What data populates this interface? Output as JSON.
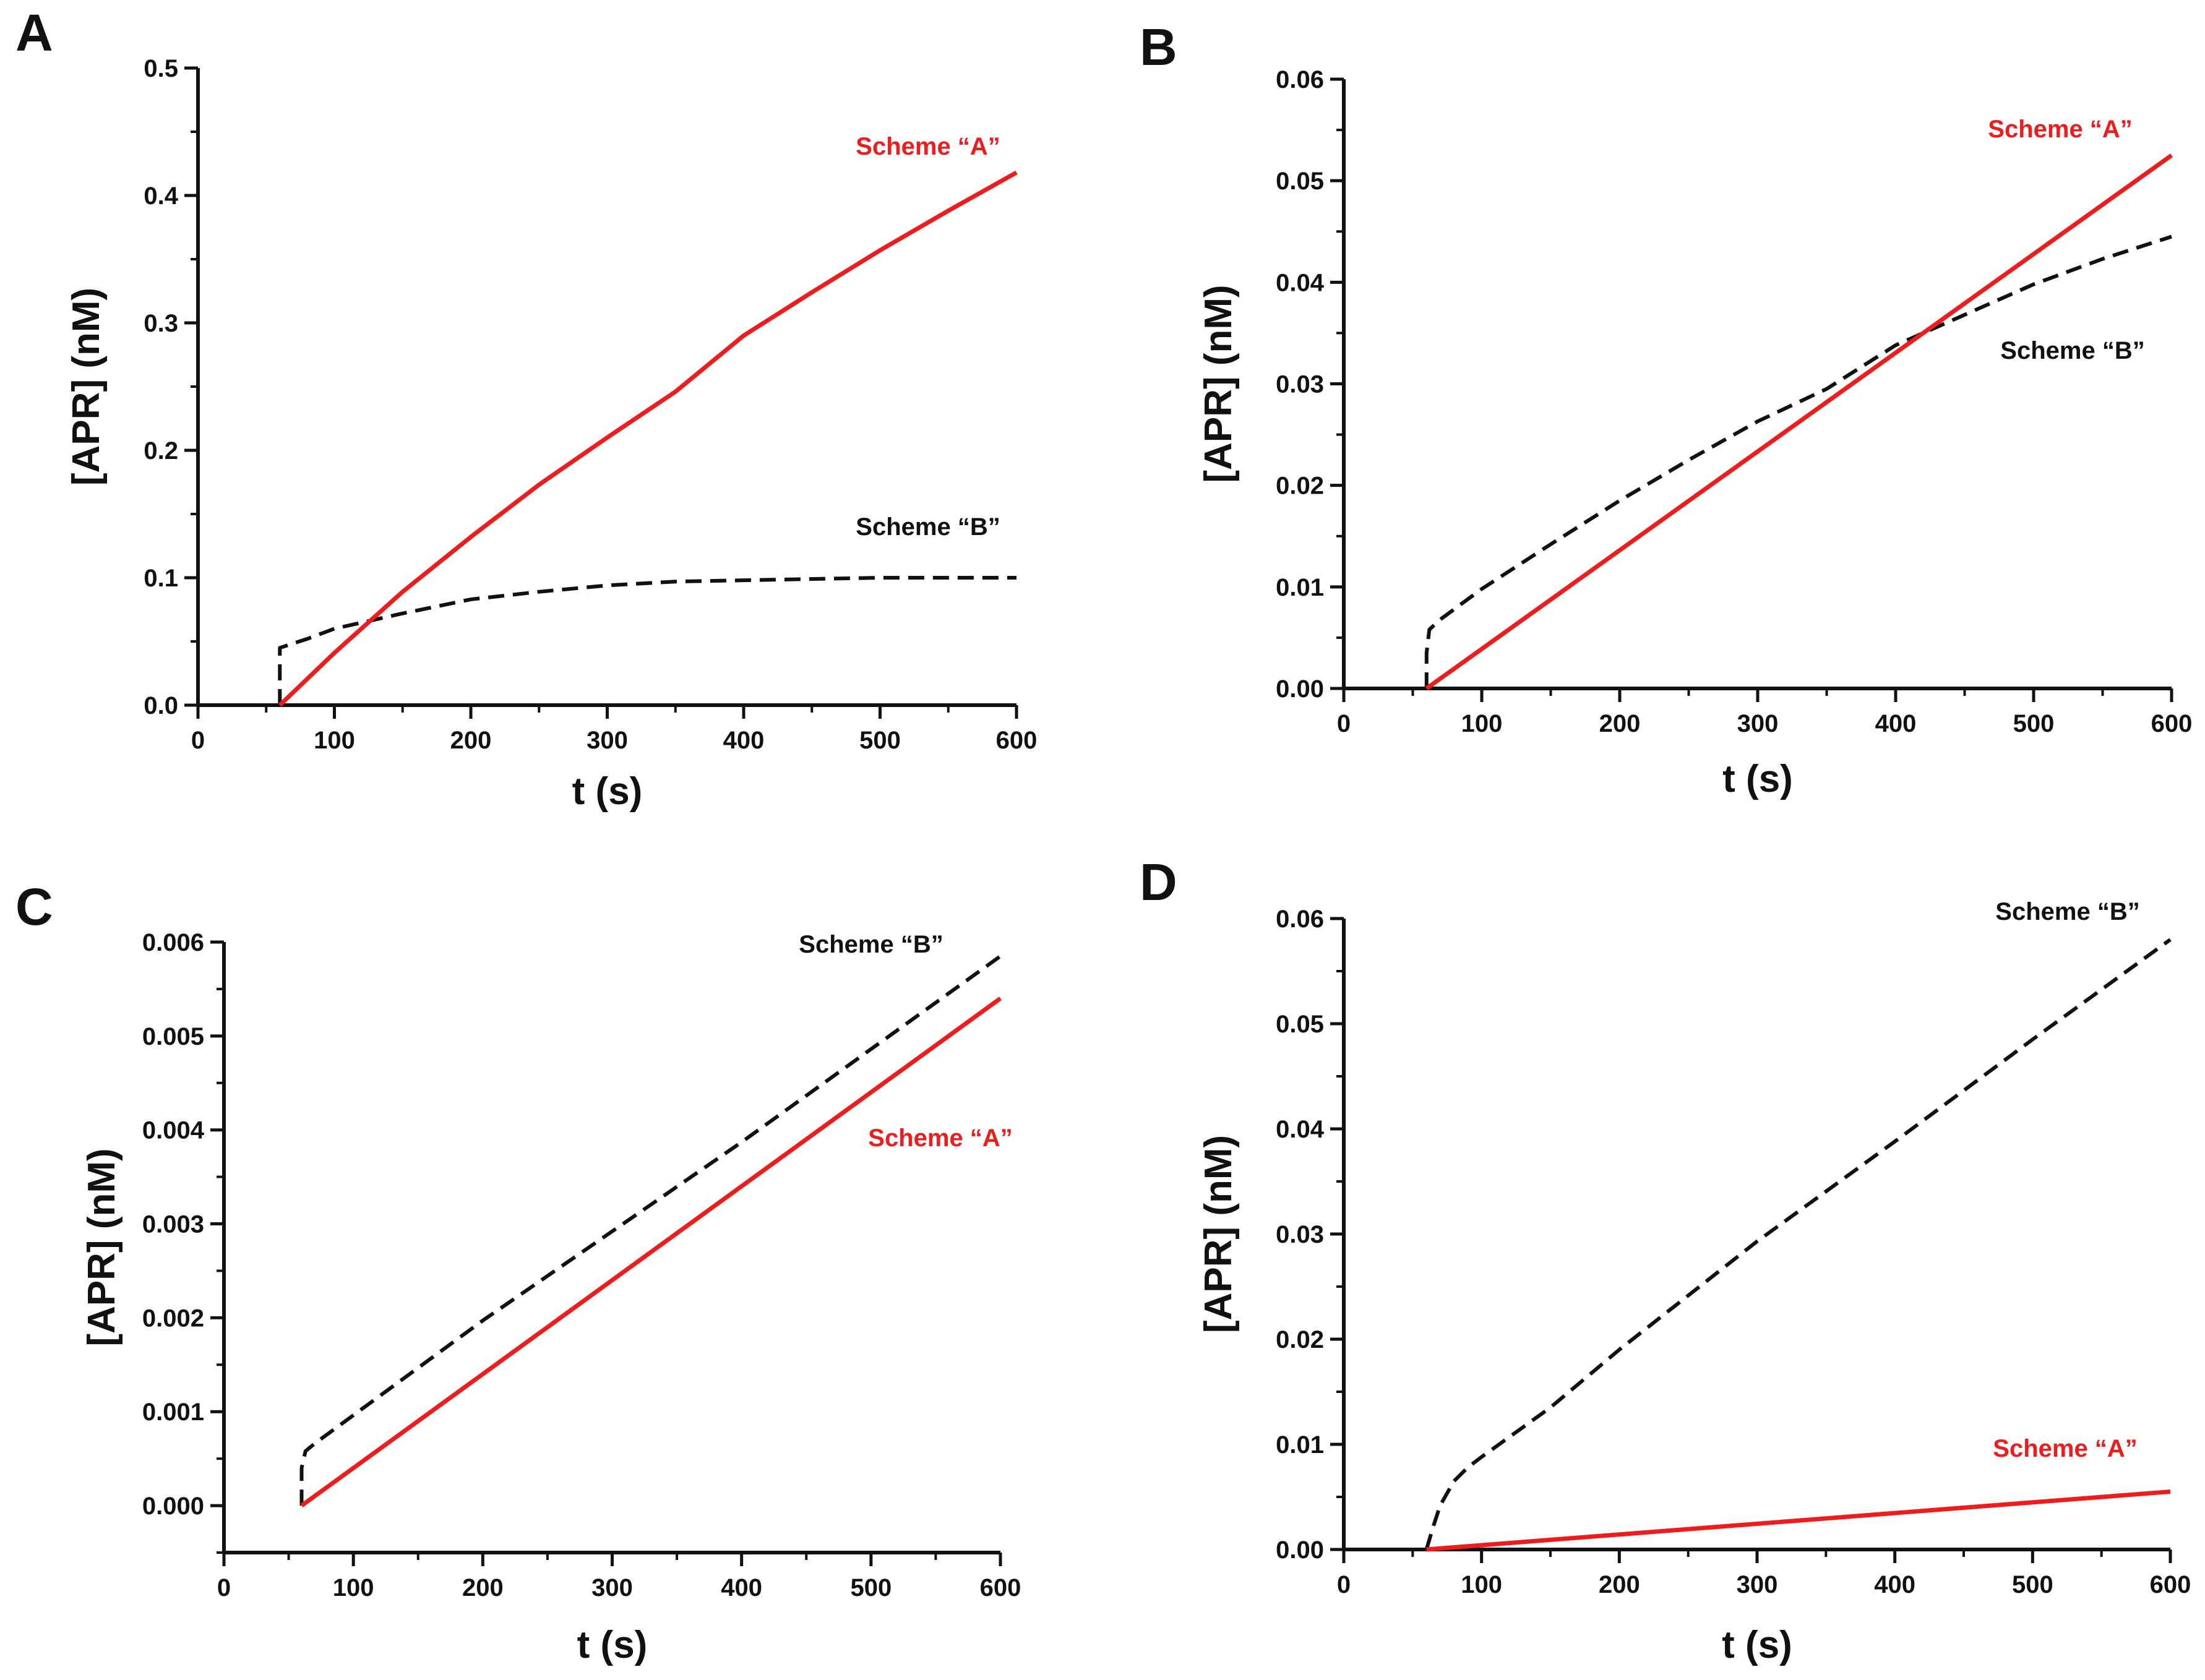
{
  "figure": {
    "panels": [
      "A",
      "B",
      "C",
      "D"
    ]
  },
  "colors": {
    "scheme_a": "#ee1c1c",
    "scheme_b": "#111111",
    "axis": "#111111"
  },
  "chart_data": [
    {
      "panel": "A",
      "type": "line",
      "xlabel": "t (s)",
      "ylabel": "[APR] (nM)",
      "xlim": [
        0,
        600
      ],
      "ylim": [
        0,
        0.5
      ],
      "xticks": [
        "0",
        "100",
        "200",
        "300",
        "400",
        "500",
        "600"
      ],
      "yticks": [
        "0.0",
        "0.1",
        "0.2",
        "0.3",
        "0.4",
        "0.5"
      ],
      "grid": false,
      "series": [
        {
          "name": "Scheme “A”",
          "style": "solid",
          "color": "#ee1c1c",
          "points": [
            [
              60,
              0
            ],
            [
              100,
              0.041
            ],
            [
              150,
              0.089
            ],
            [
              200,
              0.132
            ],
            [
              250,
              0.173
            ],
            [
              300,
              0.21
            ],
            [
              350,
              0.246
            ],
            [
              400,
              0.29
            ],
            [
              450,
              0.324
            ],
            [
              500,
              0.357
            ],
            [
              550,
              0.388
            ],
            [
              600,
              0.418
            ]
          ]
        },
        {
          "name": "Scheme “B”",
          "style": "dashed",
          "color": "#111111",
          "points": [
            [
              60,
              0
            ],
            [
              60,
              0.045
            ],
            [
              80,
              0.052
            ],
            [
              100,
              0.06
            ],
            [
              150,
              0.072
            ],
            [
              200,
              0.083
            ],
            [
              250,
              0.089
            ],
            [
              300,
              0.094
            ],
            [
              350,
              0.097
            ],
            [
              400,
              0.098
            ],
            [
              500,
              0.1
            ],
            [
              600,
              0.1
            ]
          ]
        }
      ]
    },
    {
      "panel": "B",
      "type": "line",
      "xlabel": "t (s)",
      "ylabel": "[APR] (nM)",
      "xlim": [
        0,
        600
      ],
      "ylim": [
        0,
        0.06
      ],
      "xticks": [
        "0",
        "100",
        "200",
        "300",
        "400",
        "500",
        "600"
      ],
      "yticks": [
        "0.00",
        "0.01",
        "0.02",
        "0.03",
        "0.04",
        "0.05",
        "0.06"
      ],
      "grid": false,
      "series": [
        {
          "name": "Scheme “A”",
          "style": "solid",
          "color": "#ee1c1c",
          "points": [
            [
              60,
              0
            ],
            [
              600,
              0.0525
            ]
          ]
        },
        {
          "name": "Scheme “B”",
          "style": "dashed",
          "color": "#111111",
          "points": [
            [
              60,
              0
            ],
            [
              60,
              0.0035
            ],
            [
              62,
              0.0058
            ],
            [
              70,
              0.0068
            ],
            [
              100,
              0.0098
            ],
            [
              150,
              0.0142
            ],
            [
              200,
              0.0185
            ],
            [
              250,
              0.0225
            ],
            [
              300,
              0.0263
            ],
            [
              350,
              0.0295
            ],
            [
              400,
              0.0338
            ],
            [
              450,
              0.0368
            ],
            [
              500,
              0.0398
            ],
            [
              550,
              0.0423
            ],
            [
              600,
              0.0445
            ]
          ]
        }
      ]
    },
    {
      "panel": "C",
      "type": "line",
      "xlabel": "t (s)",
      "ylabel": "[APR] (nM)",
      "xlim": [
        0,
        600
      ],
      "ylim": [
        -0.0005,
        0.006
      ],
      "xticks": [
        "0",
        "100",
        "200",
        "300",
        "400",
        "500",
        "600"
      ],
      "yticks": [
        "0.000",
        "0.001",
        "0.002",
        "0.003",
        "0.004",
        "0.005",
        "0.006"
      ],
      "grid": false,
      "series": [
        {
          "name": "Scheme “A”",
          "style": "solid",
          "color": "#ee1c1c",
          "points": [
            [
              60,
              0
            ],
            [
              600,
              0.0054
            ]
          ]
        },
        {
          "name": "Scheme “B”",
          "style": "dashed",
          "color": "#111111",
          "points": [
            [
              60,
              0
            ],
            [
              60,
              0.0004
            ],
            [
              63,
              0.00058
            ],
            [
              70,
              0.00066
            ],
            [
              200,
              0.00197
            ],
            [
              400,
              0.00387
            ],
            [
              600,
              0.00585
            ]
          ]
        }
      ]
    },
    {
      "panel": "D",
      "type": "line",
      "xlabel": "t (s)",
      "ylabel": "[APR] (nM)",
      "xlim": [
        0,
        600
      ],
      "ylim": [
        0,
        0.06
      ],
      "xticks": [
        "0",
        "100",
        "200",
        "300",
        "400",
        "500",
        "600"
      ],
      "yticks": [
        "0.00",
        "0.01",
        "0.02",
        "0.03",
        "0.04",
        "0.05",
        "0.06"
      ],
      "grid": false,
      "series": [
        {
          "name": "Scheme “A”",
          "style": "solid",
          "color": "#ee1c1c",
          "points": [
            [
              60,
              0
            ],
            [
              600,
              0.0055
            ]
          ]
        },
        {
          "name": "Scheme “B”",
          "style": "dashed",
          "color": "#111111",
          "points": [
            [
              60,
              0
            ],
            [
              65,
              0.0022
            ],
            [
              70,
              0.0042
            ],
            [
              80,
              0.0065
            ],
            [
              90,
              0.0078
            ],
            [
              100,
              0.0088
            ],
            [
              150,
              0.0135
            ],
            [
              200,
              0.019
            ],
            [
              300,
              0.0293
            ],
            [
              400,
              0.0388
            ],
            [
              500,
              0.0485
            ],
            [
              600,
              0.058
            ]
          ]
        }
      ]
    }
  ]
}
